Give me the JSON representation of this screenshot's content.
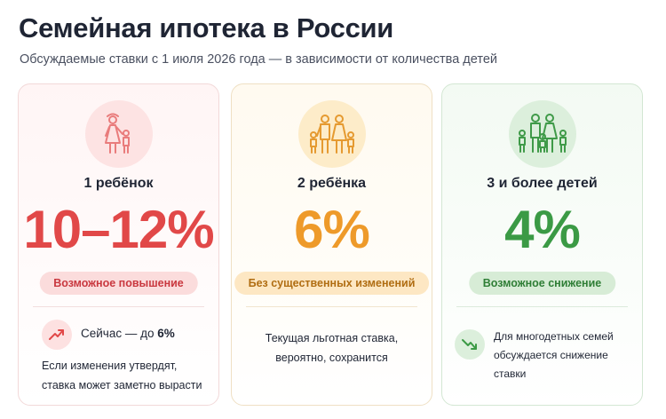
{
  "header": {
    "title": "Семейная ипотека в России",
    "subtitle": "Обсуждаемые ставки с 1 июля 2026 года — в зависимости от количества детей"
  },
  "cards": [
    {
      "label": "1 ребёнок",
      "rate": "10–12%",
      "badge": "Возможное повышение",
      "icon": "parent-with-child-icon",
      "trend_icon": "trend-up-icon",
      "now_prefix": "Сейчас — до",
      "now_value": "6%",
      "note_line1": "Если изменения утвердят,",
      "note_line2": "ставка может заметно вырасти",
      "color": "#e14848"
    },
    {
      "label": "2 ребёнка",
      "rate": "6%",
      "badge": "Без существенных изменений",
      "icon": "family-two-children-icon",
      "note_line1": "Текущая льготная ставка,",
      "note_line2": "вероятно, сохранится",
      "color": "#ee9a2a"
    },
    {
      "label": "3 и более детей",
      "rate": "4%",
      "badge": "Возможное снижение",
      "icon": "large-family-icon",
      "trend_icon": "trend-down-icon",
      "note_line1": "Для многодетных семей",
      "note_line2": "обсуждается снижение ставки",
      "color": "#3b9a45"
    }
  ]
}
